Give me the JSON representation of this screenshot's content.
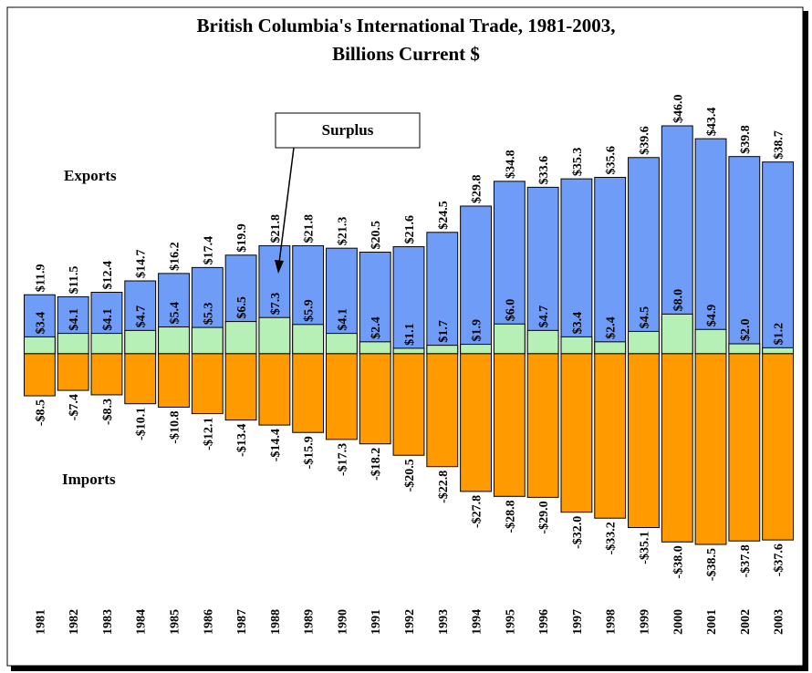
{
  "chart_data": {
    "type": "bar",
    "title": "British Columbia's International Trade, 1981-2003,",
    "subtitle": "Billions Current $",
    "categories": [
      "1981",
      "1982",
      "1983",
      "1984",
      "1985",
      "1986",
      "1987",
      "1988",
      "1989",
      "1990",
      "1991",
      "1992",
      "1993",
      "1994",
      "1995",
      "1996",
      "1997",
      "1998",
      "1999",
      "2000",
      "2001",
      "2002",
      "2003"
    ],
    "series": [
      {
        "name": "Exports",
        "color": "#6f9cf7",
        "values": [
          11.9,
          11.5,
          12.4,
          14.7,
          16.2,
          17.4,
          19.9,
          21.8,
          21.8,
          21.3,
          20.5,
          21.6,
          24.5,
          29.8,
          34.8,
          33.6,
          35.3,
          35.6,
          39.6,
          46.0,
          43.4,
          39.8,
          38.7
        ],
        "value_labels": [
          "$11.9",
          "$11.5",
          "$12.4",
          "$14.7",
          "$16.2",
          "$17.4",
          "$19.9",
          "$21.8",
          "$21.8",
          "$21.3",
          "$20.5",
          "$21.6",
          "$24.5",
          "$29.8",
          "$34.8",
          "$33.6",
          "$35.3",
          "$35.6",
          "$39.6",
          "$46.0",
          "$43.4",
          "$39.8",
          "$38.7"
        ]
      },
      {
        "name": "Surplus",
        "color": "#b6f0b6",
        "values": [
          3.4,
          4.1,
          4.1,
          4.7,
          5.4,
          5.3,
          6.5,
          7.3,
          5.9,
          4.1,
          2.4,
          1.1,
          1.7,
          1.9,
          6.0,
          4.7,
          3.4,
          2.4,
          4.5,
          8.0,
          4.9,
          2.0,
          1.2
        ],
        "value_labels": [
          "$3.4",
          "$4.1",
          "$4.1",
          "$4.7",
          "$5.4",
          "$5.3",
          "$6.5",
          "$7.3",
          "$5.9",
          "$4.1",
          "$2.4",
          "$1.1",
          "$1.7",
          "$1.9",
          "$6.0",
          "$4.7",
          "$3.4",
          "$2.4",
          "$4.5",
          "$8.0",
          "$4.9",
          "$2.0",
          "$1.2"
        ]
      },
      {
        "name": "Imports",
        "color": "#ff9a00",
        "values": [
          -8.5,
          -7.4,
          -8.3,
          -10.1,
          -10.8,
          -12.1,
          -13.4,
          -14.4,
          -15.9,
          -17.3,
          -18.2,
          -20.5,
          -22.8,
          -27.8,
          -28.8,
          -29.0,
          -32.0,
          -33.2,
          -35.1,
          -38.0,
          -38.5,
          -37.8,
          -37.6
        ],
        "value_labels": [
          "-$8.5",
          "-$7.4",
          "-$8.3",
          "-$10.1",
          "-$10.8",
          "-$12.1",
          "-$13.4",
          "-$14.4",
          "-$15.9",
          "-$17.3",
          "-$18.2",
          "-$20.5",
          "-$22.8",
          "-$27.8",
          "-$28.8",
          "-$29.0",
          "-$32.0",
          "-$33.2",
          "-$35.1",
          "-$38.0",
          "-$38.5",
          "-$37.8",
          "-$37.6"
        ]
      }
    ]
  }
}
